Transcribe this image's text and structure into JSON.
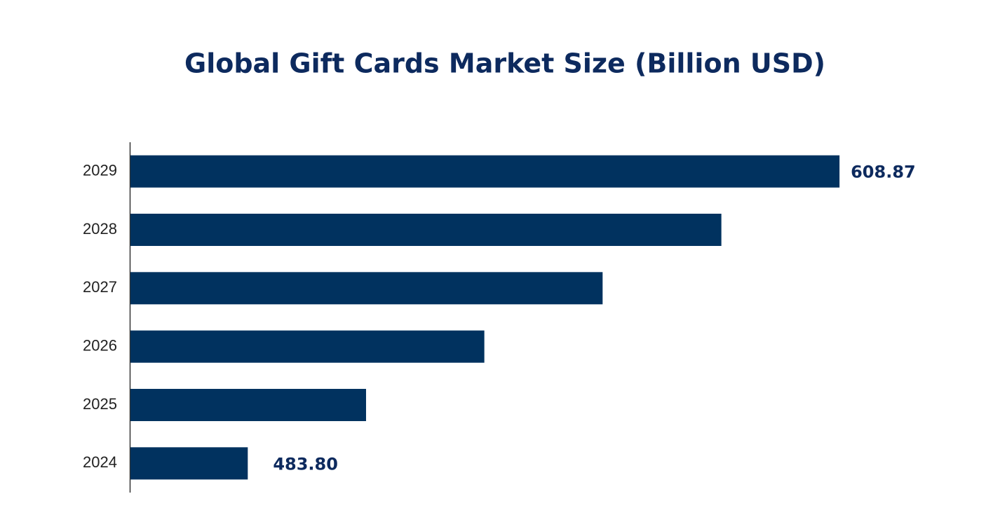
{
  "chart_data": {
    "type": "hbar",
    "title": "Global Gift Cards Market Size (Billion USD)",
    "categories": [
      "2024",
      "2025",
      "2026",
      "2027",
      "2028",
      "2029"
    ],
    "values": [
      483.8,
      508.8,
      533.8,
      558.8,
      583.9,
      608.87
    ],
    "value_labels": [
      "483.80",
      null,
      null,
      null,
      null,
      "608.87"
    ],
    "color": "#01325f",
    "xlim": [
      459,
      609
    ]
  }
}
